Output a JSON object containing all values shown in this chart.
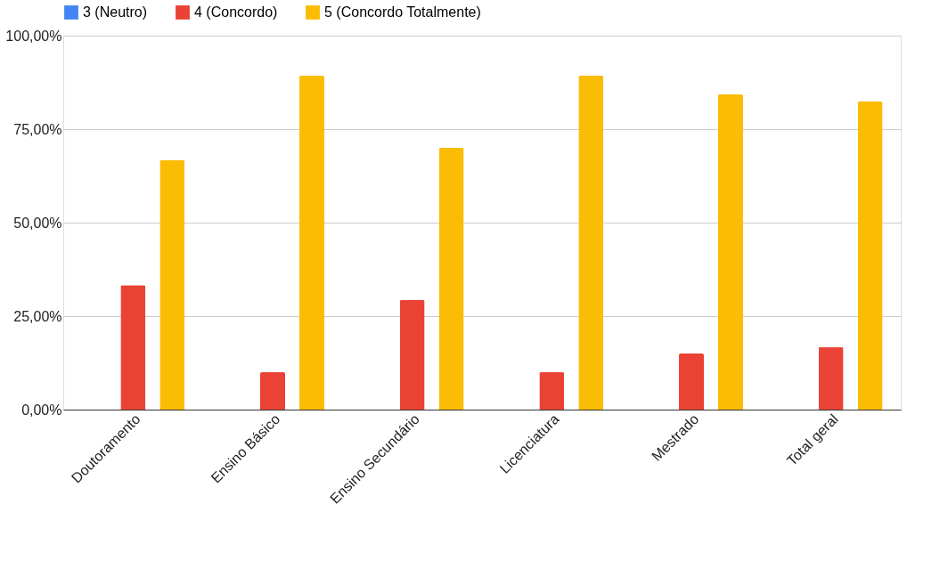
{
  "chart_data": {
    "type": "bar",
    "categories": [
      "Doutoramento",
      "Ensino Básico",
      "Ensino Secundário",
      "Licenciatura",
      "Mestrado",
      "Total geral"
    ],
    "series": [
      {
        "name": "3 (Neutro)",
        "color": "#4285f4",
        "values": [
          0,
          0,
          0,
          0,
          0,
          0
        ]
      },
      {
        "name": "4 (Concordo)",
        "color": "#ea4335",
        "values": [
          33.3,
          10,
          29.3,
          10,
          15,
          16.7
        ]
      },
      {
        "name": "5 (Concordo Totalmente)",
        "color": "#fbbc04",
        "values": [
          66.7,
          89.3,
          70,
          89.3,
          84.3,
          82.4
        ]
      }
    ],
    "ylim": [
      0,
      100
    ],
    "yticks": [
      {
        "value": 0,
        "label": "0,00%"
      },
      {
        "value": 25,
        "label": "25,00%"
      },
      {
        "value": 50,
        "label": "50,00%"
      },
      {
        "value": 75,
        "label": "75,00%"
      },
      {
        "value": 100,
        "label": "100,00%"
      }
    ],
    "grid": "y",
    "legend": "top"
  }
}
